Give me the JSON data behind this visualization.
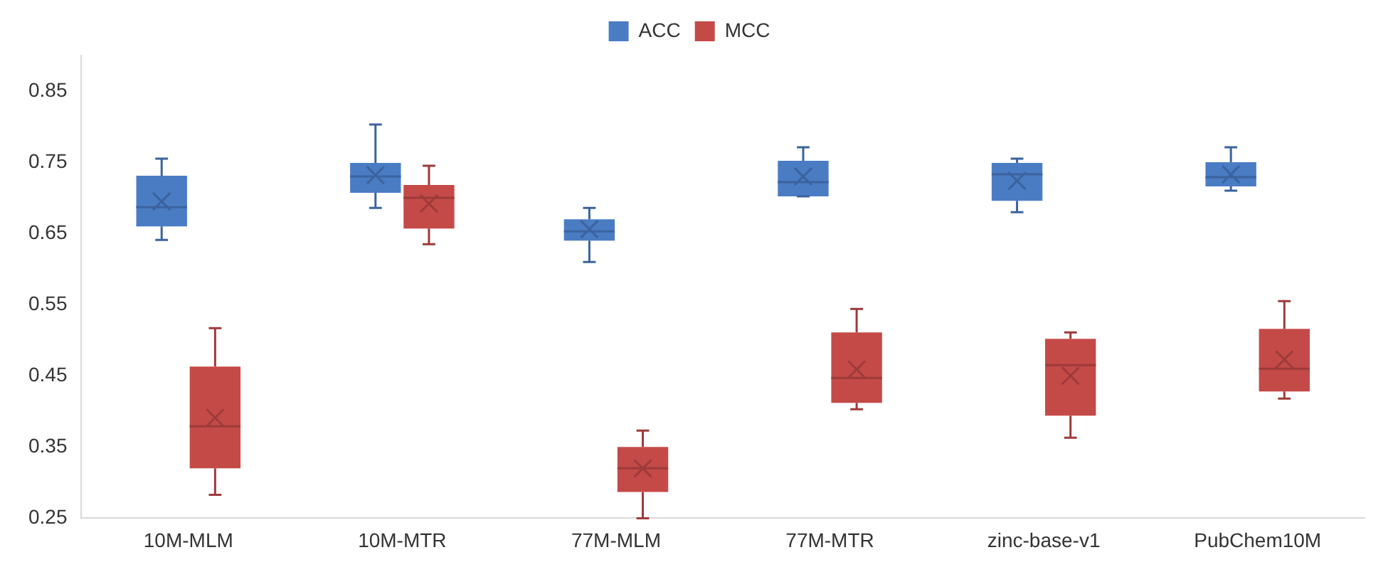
{
  "chart_data": {
    "type": "box",
    "categories": [
      "10M-MLM",
      "10M-MTR",
      "77M-MLM",
      "77M-MTR",
      "zinc-base-v1",
      "PubChem10M"
    ],
    "ylim": [
      0.25,
      0.9
    ],
    "yticks": [
      0.25,
      0.35,
      0.45,
      0.55,
      0.65,
      0.75,
      0.85
    ],
    "grid": false,
    "legend": "top",
    "series": [
      {
        "name": "ACC",
        "color": "#4a7cc4",
        "boxes": [
          {
            "low": 0.641,
            "q1": 0.66,
            "median": 0.687,
            "q3": 0.731,
            "high": 0.755,
            "mean": 0.695
          },
          {
            "low": 0.686,
            "q1": 0.707,
            "median": 0.73,
            "q3": 0.749,
            "high": 0.803,
            "mean": 0.732
          },
          {
            "low": 0.61,
            "q1": 0.64,
            "median": 0.653,
            "q3": 0.67,
            "high": 0.686,
            "mean": 0.656
          },
          {
            "low": 0.702,
            "q1": 0.702,
            "median": 0.722,
            "q3": 0.752,
            "high": 0.771,
            "mean": 0.73
          },
          {
            "low": 0.68,
            "q1": 0.696,
            "median": 0.733,
            "q3": 0.749,
            "high": 0.755,
            "mean": 0.724
          },
          {
            "low": 0.71,
            "q1": 0.716,
            "median": 0.729,
            "q3": 0.75,
            "high": 0.771,
            "mean": 0.733
          }
        ]
      },
      {
        "name": "MCC",
        "color": "#c44a48",
        "boxes": [
          {
            "low": 0.283,
            "q1": 0.32,
            "median": 0.379,
            "q3": 0.463,
            "high": 0.517,
            "mean": 0.391
          },
          {
            "low": 0.635,
            "q1": 0.657,
            "median": 0.7,
            "q3": 0.718,
            "high": 0.745,
            "mean": 0.692
          },
          {
            "low": 0.25,
            "q1": 0.287,
            "median": 0.32,
            "q3": 0.35,
            "high": 0.373,
            "mean": 0.32
          },
          {
            "low": 0.403,
            "q1": 0.412,
            "median": 0.447,
            "q3": 0.511,
            "high": 0.544,
            "mean": 0.459
          },
          {
            "low": 0.363,
            "q1": 0.394,
            "median": 0.465,
            "q3": 0.502,
            "high": 0.511,
            "mean": 0.45
          },
          {
            "low": 0.418,
            "q1": 0.428,
            "median": 0.46,
            "q3": 0.516,
            "high": 0.555,
            "mean": 0.473
          }
        ]
      }
    ]
  }
}
